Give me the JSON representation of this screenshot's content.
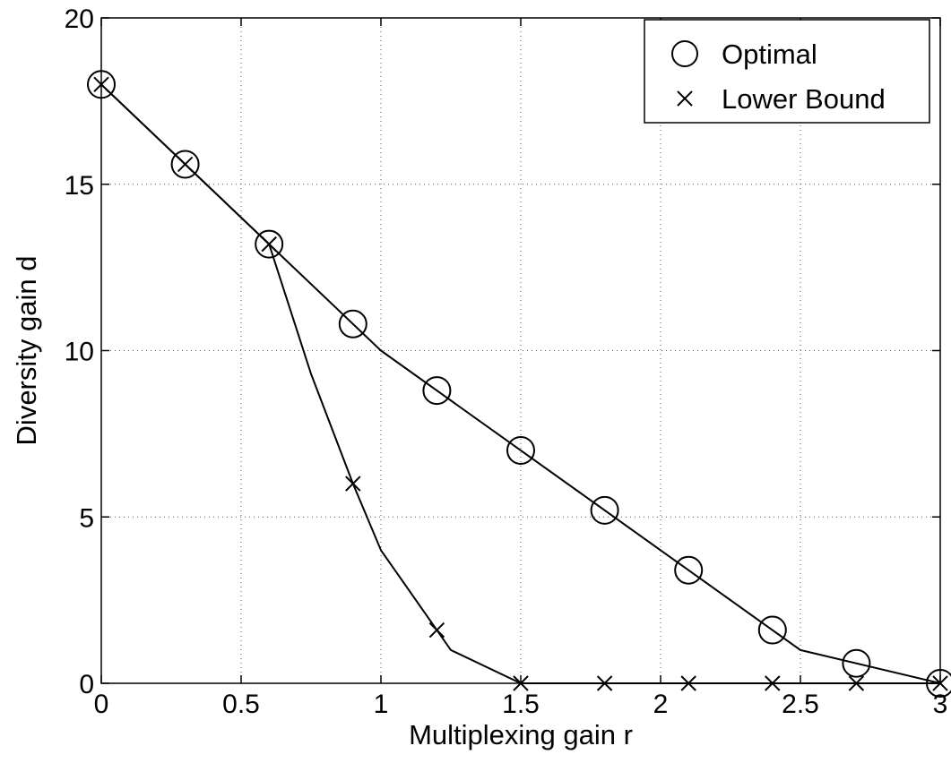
{
  "chart_data": {
    "type": "line",
    "title": "",
    "xlabel": "Multiplexing gain r",
    "ylabel": "Diversity gain d",
    "xlim": [
      0,
      3
    ],
    "ylim": [
      0,
      20
    ],
    "xticks": [
      0,
      0.5,
      1,
      1.5,
      2,
      2.5,
      3
    ],
    "yticks": [
      0,
      5,
      10,
      15,
      20
    ],
    "xtick_labels": [
      "0",
      "0.5",
      "1",
      "1.5",
      "2",
      "2.5",
      "3"
    ],
    "ytick_labels": [
      "0",
      "5",
      "10",
      "15",
      "20"
    ],
    "grid": true,
    "legend_position": "top-right",
    "series": [
      {
        "name": "Optimal",
        "marker": "circle",
        "color": "#000000",
        "curve_x": [
          0,
          0.6,
          1,
          2,
          2.5,
          3
        ],
        "curve_y": [
          18,
          13.2,
          10,
          4,
          1,
          0
        ],
        "marker_x": [
          0,
          0.3,
          0.6,
          0.9,
          1.2,
          1.5,
          1.8,
          2.1,
          2.4,
          2.7,
          3
        ],
        "marker_y": [
          18,
          15.6,
          13.2,
          10.8,
          8.8,
          7.0,
          5.2,
          3.4,
          1.6,
          0.6,
          0
        ]
      },
      {
        "name": "Lower Bound",
        "marker": "x",
        "color": "#000000",
        "curve_x": [
          0,
          0.6,
          0.75,
          0.9,
          1.0,
          1.2,
          1.25,
          1.5,
          3
        ],
        "curve_y": [
          18,
          13.2,
          9.3,
          6.0,
          4.0,
          1.6,
          1.0,
          0,
          0
        ],
        "marker_x": [
          0,
          0.3,
          0.6,
          0.9,
          1.2,
          1.5,
          1.8,
          2.1,
          2.4,
          2.7,
          3
        ],
        "marker_y": [
          18,
          15.6,
          13.2,
          6.0,
          1.6,
          0,
          0,
          0,
          0,
          0,
          0
        ]
      }
    ]
  }
}
